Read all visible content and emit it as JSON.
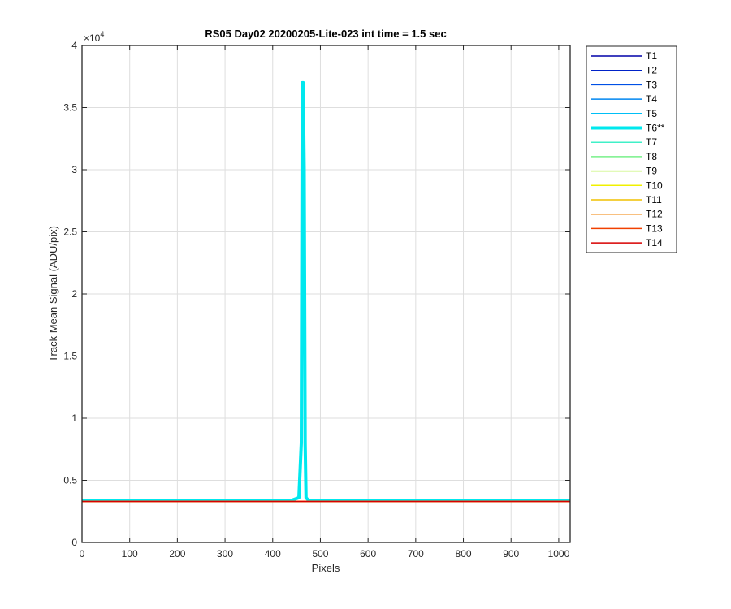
{
  "chart_data": {
    "type": "line",
    "title": "RS05 Day02 20200205-Lite-023 int time = 1.5 sec",
    "xlabel": "Pixels",
    "ylabel": "Track Mean Signal (ADU/pix)",
    "y_exponent_label": "×10",
    "y_exponent": "4",
    "xlim": [
      0,
      1024
    ],
    "ylim": [
      0,
      40000
    ],
    "xticks": [
      0,
      100,
      200,
      300,
      400,
      500,
      600,
      700,
      800,
      900,
      1000
    ],
    "xtick_labels": [
      "0",
      "100",
      "200",
      "300",
      "400",
      "500",
      "600",
      "700",
      "800",
      "900",
      "1000"
    ],
    "yticks": [
      0,
      5000,
      10000,
      15000,
      20000,
      25000,
      30000,
      35000,
      40000
    ],
    "ytick_labels": [
      "0",
      "0.5",
      "1",
      "1.5",
      "2",
      "2.5",
      "3",
      "3.5",
      "4"
    ],
    "grid": true,
    "legend_position": "outside-right-top",
    "series": [
      {
        "name": "T1",
        "color": "#0000a8",
        "width": 1.5,
        "x": [
          0,
          1024
        ],
        "y": [
          3300,
          3300
        ]
      },
      {
        "name": "T2",
        "color": "#0022c8",
        "width": 1.5,
        "x": [
          0,
          1024
        ],
        "y": [
          3300,
          3300
        ]
      },
      {
        "name": "T3",
        "color": "#0050e6",
        "width": 1.5,
        "x": [
          0,
          1024
        ],
        "y": [
          3300,
          3300
        ]
      },
      {
        "name": "T4",
        "color": "#0086f0",
        "width": 1.5,
        "x": [
          0,
          1024
        ],
        "y": [
          3300,
          3300
        ]
      },
      {
        "name": "T5",
        "color": "#00bff6",
        "width": 1.5,
        "x": [
          0,
          1024
        ],
        "y": [
          3300,
          3300
        ]
      },
      {
        "name": "T6**",
        "color": "#00e8ee",
        "width": 4,
        "x": [
          0,
          440,
          455,
          460,
          462,
          464,
          466,
          468,
          470,
          475,
          490,
          1024
        ],
        "y": [
          3400,
          3400,
          3600,
          8000,
          37000,
          37000,
          30000,
          8000,
          3600,
          3400,
          3400,
          3400
        ]
      },
      {
        "name": "T7",
        "color": "#40f0c8",
        "width": 1.5,
        "x": [
          0,
          1024
        ],
        "y": [
          3300,
          3300
        ]
      },
      {
        "name": "T8",
        "color": "#78f08a",
        "width": 1.5,
        "x": [
          0,
          1024
        ],
        "y": [
          3300,
          3300
        ]
      },
      {
        "name": "T9",
        "color": "#b2f040",
        "width": 1.5,
        "x": [
          0,
          1024
        ],
        "y": [
          3300,
          3300
        ]
      },
      {
        "name": "T10",
        "color": "#f0f000",
        "width": 1.5,
        "x": [
          0,
          1024
        ],
        "y": [
          3300,
          3300
        ]
      },
      {
        "name": "T11",
        "color": "#f0c000",
        "width": 1.5,
        "x": [
          0,
          1024
        ],
        "y": [
          3300,
          3300
        ]
      },
      {
        "name": "T12",
        "color": "#f08000",
        "width": 1.5,
        "x": [
          0,
          1024
        ],
        "y": [
          3300,
          3300
        ]
      },
      {
        "name": "T13",
        "color": "#f04000",
        "width": 1.5,
        "x": [
          0,
          1024
        ],
        "y": [
          3300,
          3300
        ]
      },
      {
        "name": "T14",
        "color": "#d80000",
        "width": 1.5,
        "x": [
          0,
          1024
        ],
        "y": [
          3300,
          3300
        ]
      }
    ]
  }
}
